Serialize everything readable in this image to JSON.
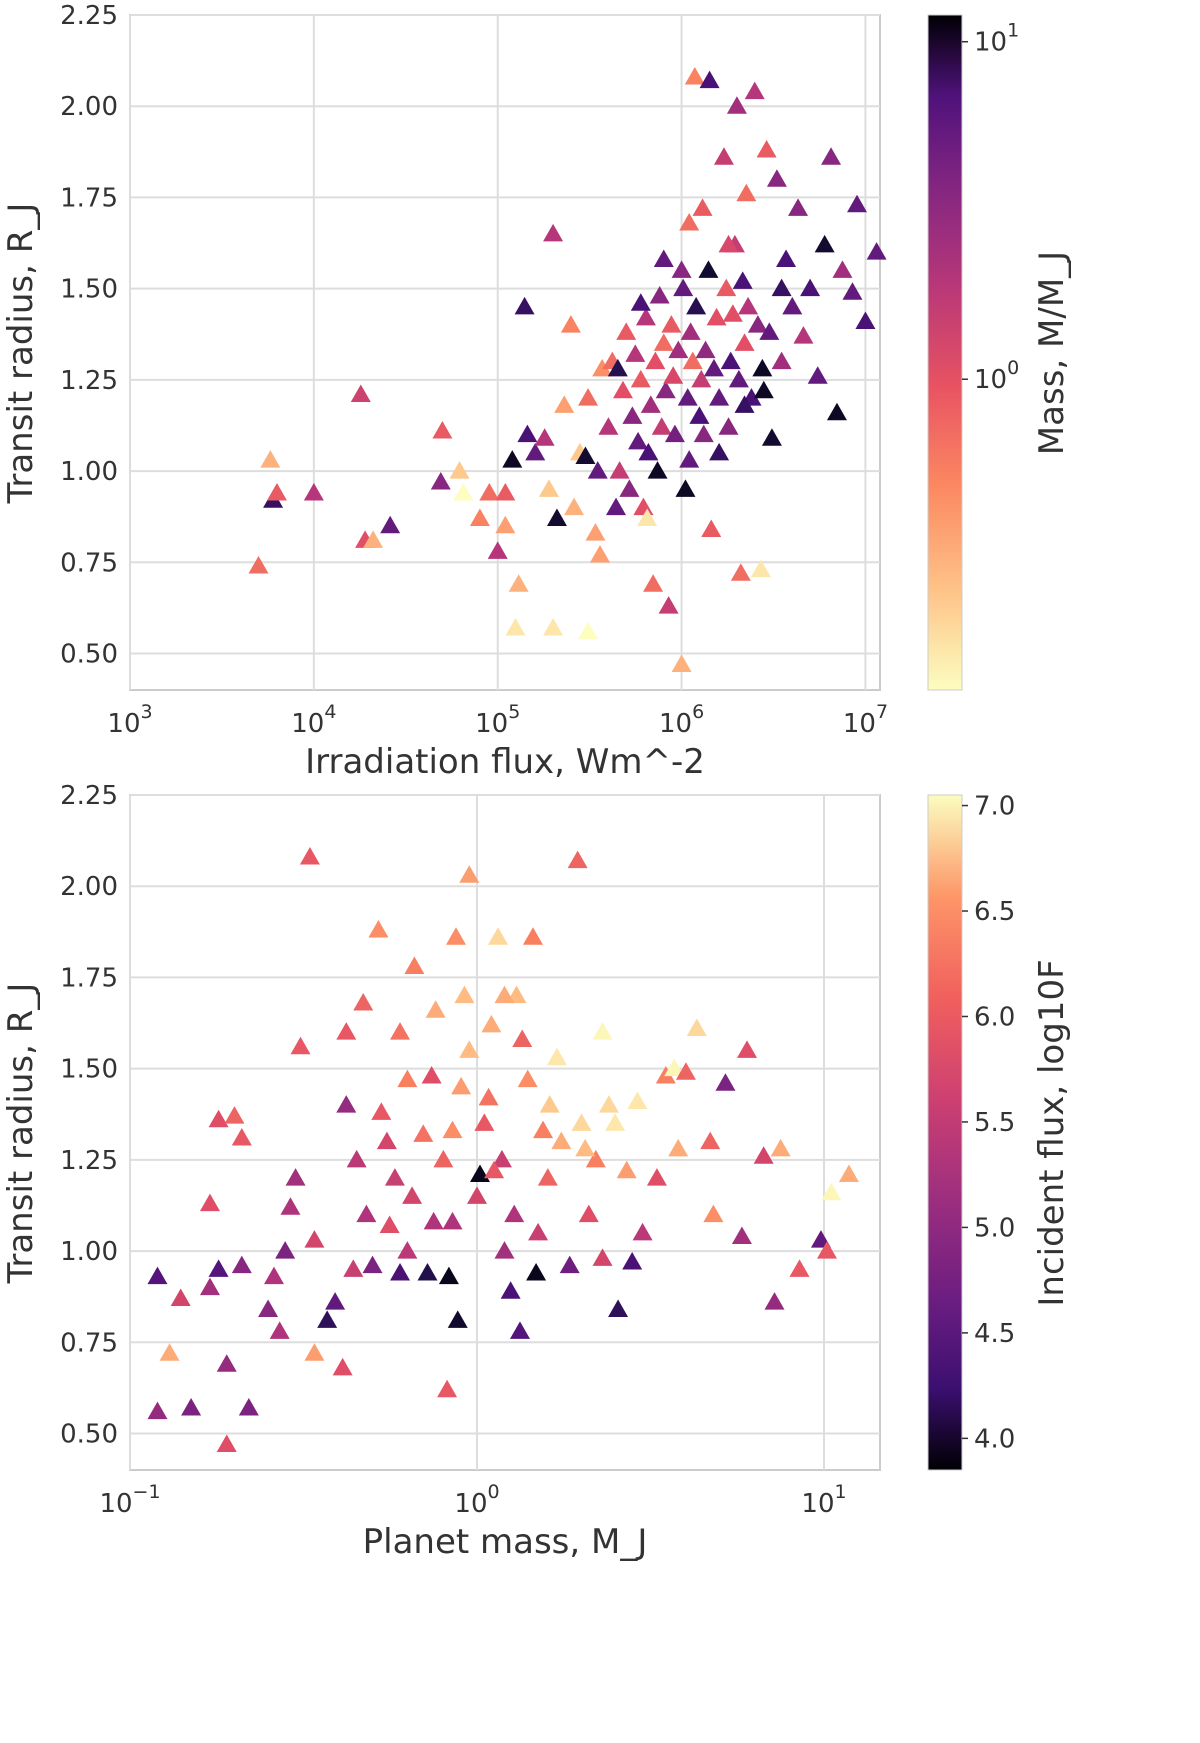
{
  "chart_data": [
    {
      "type": "scatter",
      "panel": "top",
      "xlabel": "Irradiation flux, Wm^-2",
      "ylabel": "Transit radius, R_J",
      "xscale": "log",
      "xlim": [
        1000,
        12000000
      ],
      "ylim": [
        0.4,
        2.25
      ],
      "x_ticks": [
        {
          "base": "10",
          "exp": "3",
          "value": 1000
        },
        {
          "base": "10",
          "exp": "4",
          "value": 10000
        },
        {
          "base": "10",
          "exp": "5",
          "value": 100000
        },
        {
          "base": "10",
          "exp": "6",
          "value": 1000000
        },
        {
          "base": "10",
          "exp": "7",
          "value": 10000000
        }
      ],
      "y_ticks": [
        "0.50",
        "0.75",
        "1.00",
        "1.25",
        "1.50",
        "1.75",
        "2.00",
        "2.25"
      ],
      "grid": true,
      "marker": "triangle",
      "colorbar": {
        "label": "Mass, M/M_J",
        "scale": "log",
        "range": [
          0.12,
          12
        ],
        "ticks": [
          {
            "base": "10",
            "exp": "1",
            "value": 10
          },
          {
            "base": "10",
            "exp": "0",
            "value": 1
          }
        ],
        "colormap": "magma_r"
      },
      "points": [
        [
          5000,
          0.74,
          0.5
        ],
        [
          5800,
          1.03,
          0.25
        ],
        [
          6000,
          0.92,
          5
        ],
        [
          6300,
          0.94,
          0.6
        ],
        [
          10000,
          0.94,
          1.2
        ],
        [
          18000,
          1.21,
          0.9
        ],
        [
          19000,
          0.81,
          0.7
        ],
        [
          21000,
          0.81,
          0.25
        ],
        [
          26000,
          0.85,
          3
        ],
        [
          49000,
          0.97,
          2
        ],
        [
          50000,
          1.11,
          0.6
        ],
        [
          62000,
          1.0,
          0.2
        ],
        [
          65000,
          0.94,
          0.12
        ],
        [
          80000,
          0.87,
          0.4
        ],
        [
          90000,
          0.94,
          0.5
        ],
        [
          100000,
          0.78,
          1.2
        ],
        [
          110000,
          0.85,
          0.3
        ],
        [
          110000,
          0.94,
          0.6
        ],
        [
          120000,
          1.03,
          9
        ],
        [
          125000,
          0.57,
          0.15
        ],
        [
          130000,
          0.69,
          0.25
        ],
        [
          140000,
          1.45,
          5
        ],
        [
          145000,
          1.1,
          4
        ],
        [
          160000,
          1.05,
          3
        ],
        [
          180000,
          1.09,
          1.2
        ],
        [
          190000,
          0.95,
          0.2
        ],
        [
          200000,
          1.65,
          1.2
        ],
        [
          200000,
          0.57,
          0.15
        ],
        [
          210000,
          0.87,
          8
        ],
        [
          230000,
          1.18,
          0.3
        ],
        [
          250000,
          1.4,
          0.4
        ],
        [
          260000,
          0.9,
          0.25
        ],
        [
          280000,
          1.05,
          0.2
        ],
        [
          300000,
          1.04,
          8
        ],
        [
          310000,
          0.56,
          0.12
        ],
        [
          310000,
          1.2,
          0.5
        ],
        [
          340000,
          0.83,
          0.3
        ],
        [
          350000,
          1.0,
          3
        ],
        [
          360000,
          0.77,
          0.3
        ],
        [
          370000,
          1.28,
          0.35
        ],
        [
          400000,
          1.12,
          1.2
        ],
        [
          420000,
          1.3,
          0.5
        ],
        [
          440000,
          0.9,
          3
        ],
        [
          460000,
          1.0,
          1
        ],
        [
          480000,
          1.22,
          0.7
        ],
        [
          500000,
          1.38,
          0.6
        ],
        [
          520000,
          0.95,
          2
        ],
        [
          540000,
          1.15,
          2
        ],
        [
          560000,
          1.32,
          1.2
        ],
        [
          580000,
          1.08,
          3
        ],
        [
          600000,
          1.25,
          0.6
        ],
        [
          620000,
          0.9,
          0.7
        ],
        [
          640000,
          1.42,
          1.2
        ],
        [
          650000,
          0.87,
          0.15
        ],
        [
          660000,
          1.05,
          4
        ],
        [
          680000,
          1.18,
          1.5
        ],
        [
          700000,
          0.69,
          0.5
        ],
        [
          720000,
          1.3,
          0.7
        ],
        [
          740000,
          1.0,
          9
        ],
        [
          760000,
          1.48,
          2
        ],
        [
          780000,
          1.12,
          1
        ],
        [
          800000,
          1.35,
          0.5
        ],
        [
          820000,
          1.22,
          2
        ],
        [
          850000,
          0.63,
          1
        ],
        [
          880000,
          1.4,
          0.6
        ],
        [
          900000,
          1.26,
          0.8
        ],
        [
          920000,
          1.1,
          2.5
        ],
        [
          960000,
          1.33,
          1.5
        ],
        [
          1000000,
          0.47,
          0.25
        ],
        [
          1020000,
          1.5,
          3
        ],
        [
          1050000,
          0.95,
          9
        ],
        [
          1080000,
          1.2,
          3
        ],
        [
          1100000,
          1.68,
          0.5
        ],
        [
          1120000,
          1.38,
          1.5
        ],
        [
          1150000,
          1.3,
          0.5
        ],
        [
          1180000,
          2.08,
          0.4
        ],
        [
          1200000,
          1.45,
          6
        ],
        [
          1250000,
          1.15,
          4
        ],
        [
          1280000,
          1.25,
          1
        ],
        [
          1320000,
          1.1,
          2
        ],
        [
          1350000,
          1.33,
          1.8
        ],
        [
          1400000,
          1.55,
          8
        ],
        [
          1420000,
          2.07,
          4
        ],
        [
          1450000,
          0.84,
          0.6
        ],
        [
          1500000,
          1.28,
          3
        ],
        [
          1550000,
          1.42,
          0.7
        ],
        [
          1600000,
          1.2,
          3
        ],
        [
          1700000,
          1.86,
          1
        ],
        [
          1750000,
          1.5,
          0.6
        ],
        [
          1800000,
          1.12,
          2
        ],
        [
          1850000,
          1.3,
          4
        ],
        [
          1900000,
          1.43,
          0.7
        ],
        [
          1950000,
          1.62,
          1
        ],
        [
          2000000,
          2.0,
          1.5
        ],
        [
          2050000,
          1.25,
          3
        ],
        [
          2100000,
          0.72,
          0.5
        ],
        [
          2150000,
          1.52,
          4
        ],
        [
          2200000,
          1.35,
          0.7
        ],
        [
          2250000,
          1.76,
          0.5
        ],
        [
          2300000,
          1.45,
          1.2
        ],
        [
          2400000,
          1.2,
          4
        ],
        [
          2500000,
          2.04,
          1.2
        ],
        [
          2600000,
          1.4,
          2
        ],
        [
          2700000,
          0.73,
          0.15
        ],
        [
          2750000,
          1.28,
          9
        ],
        [
          2800000,
          1.22,
          9
        ],
        [
          2900000,
          1.88,
          0.6
        ],
        [
          3000000,
          1.38,
          3
        ],
        [
          3100000,
          1.09,
          8
        ],
        [
          3300000,
          1.8,
          2
        ],
        [
          3500000,
          1.3,
          1.5
        ],
        [
          3700000,
          1.58,
          4
        ],
        [
          4000000,
          1.45,
          3
        ],
        [
          4300000,
          1.72,
          2
        ],
        [
          4600000,
          1.37,
          1.2
        ],
        [
          5000000,
          1.5,
          4
        ],
        [
          5500000,
          1.26,
          3
        ],
        [
          6000000,
          1.62,
          8
        ],
        [
          6500000,
          1.86,
          2
        ],
        [
          7000000,
          1.16,
          9
        ],
        [
          7500000,
          1.55,
          1.5
        ],
        [
          8500000,
          1.49,
          3
        ],
        [
          9000000,
          1.73,
          3
        ],
        [
          10000000,
          1.41,
          4
        ],
        [
          11500000,
          1.6,
          3
        ],
        [
          1300000,
          1.72,
          0.6
        ],
        [
          1000000,
          1.55,
          2
        ],
        [
          800000,
          1.58,
          3
        ],
        [
          600000,
          1.46,
          4
        ],
        [
          450000,
          1.28,
          6
        ],
        [
          1600000,
          1.05,
          5
        ],
        [
          2200000,
          1.18,
          5
        ],
        [
          3500000,
          1.5,
          5
        ],
        [
          1800000,
          1.62,
          0.8
        ],
        [
          1100000,
          1.03,
          3
        ]
      ]
    },
    {
      "type": "scatter",
      "panel": "bottom",
      "xlabel": "Planet mass, M_J",
      "ylabel": "Transit radius, R_J",
      "xscale": "log",
      "xlim": [
        0.1,
        14.5
      ],
      "ylim": [
        0.4,
        2.25
      ],
      "x_ticks": [
        {
          "base": "10",
          "exp": "−1",
          "value": 0.1
        },
        {
          "base": "10",
          "exp": "0",
          "value": 1
        },
        {
          "base": "10",
          "exp": "1",
          "value": 10
        }
      ],
      "y_ticks": [
        "0.50",
        "0.75",
        "1.00",
        "1.25",
        "1.50",
        "1.75",
        "2.00",
        "2.25"
      ],
      "grid": true,
      "marker": "triangle",
      "colorbar": {
        "label": "Incident flux, log10F",
        "scale": "linear",
        "range": [
          3.85,
          7.05
        ],
        "ticks": [
          "4.0",
          "4.5",
          "5.0",
          "5.5",
          "6.0",
          "6.5",
          "7.0"
        ],
        "colormap": "magma"
      },
      "points": [
        [
          0.12,
          0.56,
          5.2
        ],
        [
          0.12,
          0.93,
          4.7
        ],
        [
          0.13,
          0.72,
          6.5
        ],
        [
          0.14,
          0.87,
          5.7
        ],
        [
          0.15,
          0.57,
          5.0
        ],
        [
          0.17,
          0.9,
          5.3
        ],
        [
          0.17,
          1.13,
          5.8
        ],
        [
          0.18,
          0.95,
          4.7
        ],
        [
          0.18,
          1.36,
          5.8
        ],
        [
          0.19,
          0.47,
          5.8
        ],
        [
          0.19,
          0.69,
          5.2
        ],
        [
          0.2,
          1.37,
          6.0
        ],
        [
          0.21,
          0.96,
          5.1
        ],
        [
          0.21,
          1.31,
          5.9
        ],
        [
          0.22,
          0.57,
          5.0
        ],
        [
          0.25,
          0.84,
          5.1
        ],
        [
          0.26,
          0.93,
          5.4
        ],
        [
          0.27,
          0.78,
          5.4
        ],
        [
          0.28,
          1.0,
          5.0
        ],
        [
          0.3,
          1.2,
          5.3
        ],
        [
          0.31,
          1.56,
          5.9
        ],
        [
          0.33,
          2.08,
          5.9
        ],
        [
          0.34,
          0.72,
          6.4
        ],
        [
          0.37,
          0.81,
          4.4
        ],
        [
          0.39,
          0.86,
          4.8
        ],
        [
          0.41,
          0.68,
          5.8
        ],
        [
          0.42,
          1.4,
          5.2
        ],
        [
          0.45,
          1.25,
          5.5
        ],
        [
          0.47,
          1.68,
          6.0
        ],
        [
          0.5,
          0.96,
          5.0
        ],
        [
          0.52,
          1.88,
          6.3
        ],
        [
          0.55,
          1.3,
          5.7
        ],
        [
          0.58,
          1.2,
          5.6
        ],
        [
          0.6,
          0.94,
          4.6
        ],
        [
          0.63,
          1.47,
          6.2
        ],
        [
          0.65,
          1.15,
          5.7
        ],
        [
          0.7,
          1.32,
          6.1
        ],
        [
          0.72,
          0.94,
          4.3
        ],
        [
          0.76,
          1.66,
          6.5
        ],
        [
          0.8,
          1.25,
          6.0
        ],
        [
          0.82,
          0.62,
          5.9
        ],
        [
          0.83,
          0.93,
          4.0
        ],
        [
          0.85,
          1.08,
          5.4
        ],
        [
          0.87,
          1.86,
          6.3
        ],
        [
          0.88,
          0.81,
          4.1
        ],
        [
          0.9,
          1.45,
          6.4
        ],
        [
          0.92,
          1.7,
          6.6
        ],
        [
          0.95,
          2.03,
          6.4
        ],
        [
          1.0,
          1.15,
          5.7
        ],
        [
          1.02,
          1.21,
          4.0
        ],
        [
          1.05,
          1.35,
          5.9
        ],
        [
          1.1,
          1.62,
          6.5
        ],
        [
          1.15,
          1.86,
          6.8
        ],
        [
          1.18,
          1.25,
          5.6
        ],
        [
          1.2,
          1.0,
          5.3
        ],
        [
          1.25,
          0.89,
          4.6
        ],
        [
          1.3,
          1.7,
          6.6
        ],
        [
          1.33,
          0.78,
          4.7
        ],
        [
          1.4,
          1.47,
          6.3
        ],
        [
          1.45,
          1.86,
          6.2
        ],
        [
          1.48,
          0.94,
          4.0
        ],
        [
          1.55,
          1.33,
          6.2
        ],
        [
          1.6,
          1.2,
          6.0
        ],
        [
          1.7,
          1.53,
          6.9
        ],
        [
          1.85,
          0.96,
          4.9
        ],
        [
          1.95,
          2.07,
          6.0
        ],
        [
          2.0,
          1.35,
          6.8
        ],
        [
          2.1,
          1.1,
          5.8
        ],
        [
          2.2,
          1.25,
          6.2
        ],
        [
          2.3,
          1.6,
          7.0
        ],
        [
          2.4,
          1.4,
          6.8
        ],
        [
          2.55,
          0.84,
          4.4
        ],
        [
          2.7,
          1.22,
          6.4
        ],
        [
          2.8,
          0.97,
          4.6
        ],
        [
          2.9,
          1.41,
          6.9
        ],
        [
          3.0,
          1.05,
          5.5
        ],
        [
          3.3,
          1.2,
          5.8
        ],
        [
          3.5,
          1.48,
          6.2
        ],
        [
          3.7,
          1.5,
          7.0
        ],
        [
          4.0,
          1.49,
          6.0
        ],
        [
          4.3,
          1.61,
          6.8
        ],
        [
          4.7,
          1.3,
          6.0
        ],
        [
          5.2,
          1.46,
          5.0
        ],
        [
          5.8,
          1.04,
          5.3
        ],
        [
          6.0,
          1.55,
          5.8
        ],
        [
          7.2,
          0.86,
          5.2
        ],
        [
          7.5,
          1.28,
          6.5
        ],
        [
          8.5,
          0.95,
          5.9
        ],
        [
          9.8,
          1.03,
          4.8
        ],
        [
          10.2,
          1.0,
          5.9
        ],
        [
          10.5,
          1.16,
          7.0
        ],
        [
          11.8,
          1.21,
          6.5
        ],
        [
          6.7,
          1.26,
          5.7
        ],
        [
          4.8,
          1.1,
          6.3
        ],
        [
          3.8,
          1.28,
          6.5
        ],
        [
          0.56,
          1.07,
          5.8
        ],
        [
          0.6,
          1.6,
          6.1
        ],
        [
          0.66,
          1.78,
          6.2
        ],
        [
          0.74,
          1.48,
          5.8
        ],
        [
          0.95,
          1.55,
          6.6
        ],
        [
          1.08,
          1.42,
          6.1
        ],
        [
          1.2,
          1.7,
          6.5
        ],
        [
          1.35,
          1.58,
          6.0
        ],
        [
          1.5,
          1.05,
          5.6
        ],
        [
          1.75,
          1.3,
          6.5
        ],
        [
          2.05,
          1.28,
          6.6
        ],
        [
          2.3,
          0.98,
          5.7
        ],
        [
          0.48,
          1.1,
          5.4
        ],
        [
          0.53,
          1.38,
          5.9
        ],
        [
          0.34,
          1.03,
          5.7
        ],
        [
          0.29,
          1.12,
          5.4
        ],
        [
          0.42,
          1.6,
          5.9
        ],
        [
          0.75,
          1.08,
          5.4
        ],
        [
          0.85,
          1.33,
          6.3
        ],
        [
          1.12,
          1.22,
          5.9
        ],
        [
          1.28,
          1.1,
          5.4
        ],
        [
          1.62,
          1.4,
          6.7
        ],
        [
          2.5,
          1.35,
          6.9
        ],
        [
          0.63,
          1.0,
          5.5
        ],
        [
          0.44,
          0.95,
          5.6
        ]
      ]
    }
  ]
}
